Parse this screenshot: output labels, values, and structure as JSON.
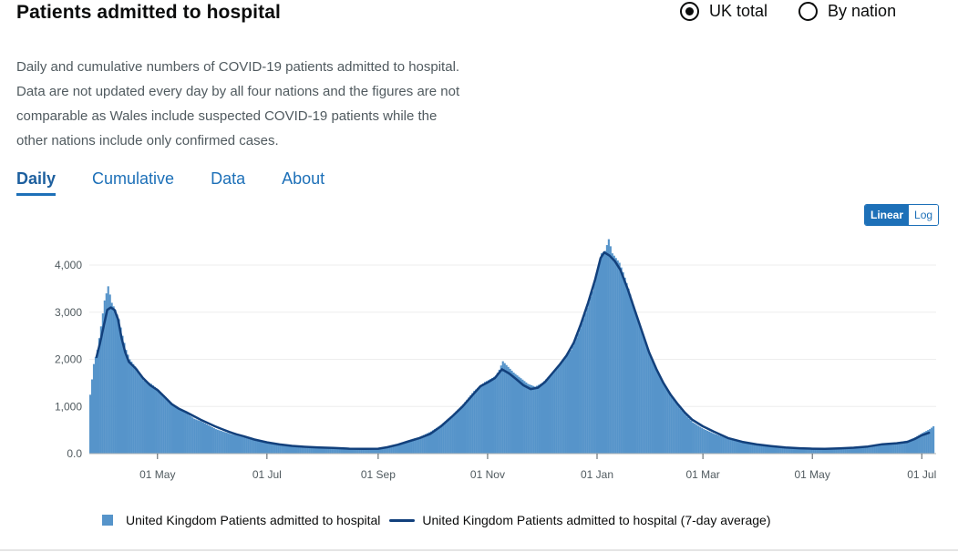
{
  "header": {
    "title": "Patients admitted to hospital"
  },
  "view_options": [
    {
      "label": "UK total",
      "checked": true
    },
    {
      "label": "By nation",
      "checked": false
    }
  ],
  "description": [
    "Daily and cumulative numbers of COVID-19 patients admitted to hospital.",
    "Data are not updated every day by all four nations and the figures are not",
    "comparable as Wales include suspected COVID-19 patients while the",
    "other nations include only confirmed cases."
  ],
  "tabs": [
    {
      "label": "Daily",
      "active": true
    },
    {
      "label": "Cumulative",
      "active": false
    },
    {
      "label": "Data",
      "active": false
    },
    {
      "label": "About",
      "active": false
    }
  ],
  "scale": {
    "linear_label": "Linear",
    "log_label": "Log",
    "active": "Linear"
  },
  "colors": {
    "bars": "#5694ca",
    "line": "#12407c",
    "grid": "#eeeeee",
    "axis_text": "#505a5f"
  },
  "chart_data": {
    "type": "bar",
    "title": "Patients admitted to hospital",
    "xlabel": "",
    "ylabel": "",
    "ylim": [
      0,
      4600
    ],
    "y_ticks": [
      0,
      1000,
      2000,
      3000,
      4000
    ],
    "y_tick_labels": [
      "0.0",
      "1,000",
      "2,000",
      "3,000",
      "4,000"
    ],
    "x_tick_labels": [
      "01 May",
      "01 Jul",
      "01 Sep",
      "01 Nov",
      "01 Jan",
      "01 Mar",
      "01 May",
      "01 Jul"
    ],
    "x_tick_days": [
      38,
      99,
      161,
      222,
      283,
      342,
      403,
      464
    ],
    "day_range": [
      0,
      472
    ],
    "grid": true,
    "legend_position": "bottom",
    "series": [
      {
        "name": "United Kingdom Patients admitted to hospital",
        "kind": "bar",
        "points": [
          [
            0,
            1250
          ],
          [
            2,
            1900
          ],
          [
            4,
            2200
          ],
          [
            6,
            2700
          ],
          [
            8,
            3250
          ],
          [
            10,
            3550
          ],
          [
            12,
            3200
          ],
          [
            14,
            3050
          ],
          [
            16,
            2850
          ],
          [
            18,
            2500
          ],
          [
            20,
            2200
          ],
          [
            22,
            2000
          ],
          [
            24,
            1900
          ],
          [
            26,
            1800
          ],
          [
            28,
            1650
          ],
          [
            30,
            1550
          ],
          [
            34,
            1480
          ],
          [
            38,
            1350
          ],
          [
            42,
            1200
          ],
          [
            46,
            1050
          ],
          [
            50,
            950
          ],
          [
            54,
            850
          ],
          [
            58,
            740
          ],
          [
            62,
            680
          ],
          [
            66,
            600
          ],
          [
            70,
            520
          ],
          [
            74,
            470
          ],
          [
            78,
            420
          ],
          [
            82,
            380
          ],
          [
            86,
            340
          ],
          [
            92,
            290
          ],
          [
            99,
            230
          ],
          [
            106,
            190
          ],
          [
            113,
            160
          ],
          [
            120,
            140
          ],
          [
            128,
            130
          ],
          [
            136,
            120
          ],
          [
            145,
            110
          ],
          [
            153,
            100
          ],
          [
            161,
            110
          ],
          [
            166,
            140
          ],
          [
            172,
            210
          ],
          [
            178,
            290
          ],
          [
            184,
            360
          ],
          [
            190,
            470
          ],
          [
            196,
            620
          ],
          [
            202,
            820
          ],
          [
            208,
            1050
          ],
          [
            214,
            1330
          ],
          [
            220,
            1520
          ],
          [
            222,
            1560
          ],
          [
            226,
            1650
          ],
          [
            228,
            1780
          ],
          [
            230,
            1960
          ],
          [
            232,
            1880
          ],
          [
            236,
            1720
          ],
          [
            240,
            1600
          ],
          [
            244,
            1480
          ],
          [
            248,
            1420
          ],
          [
            252,
            1500
          ],
          [
            256,
            1650
          ],
          [
            260,
            1820
          ],
          [
            264,
            2000
          ],
          [
            268,
            2200
          ],
          [
            272,
            2550
          ],
          [
            276,
            2980
          ],
          [
            280,
            3450
          ],
          [
            283,
            3900
          ],
          [
            285,
            4250
          ],
          [
            287,
            4300
          ],
          [
            289,
            4550
          ],
          [
            291,
            4250
          ],
          [
            293,
            4150
          ],
          [
            295,
            4050
          ],
          [
            297,
            3850
          ],
          [
            300,
            3500
          ],
          [
            304,
            3000
          ],
          [
            308,
            2550
          ],
          [
            312,
            2100
          ],
          [
            316,
            1750
          ],
          [
            320,
            1450
          ],
          [
            324,
            1200
          ],
          [
            328,
            1000
          ],
          [
            332,
            820
          ],
          [
            336,
            660
          ],
          [
            342,
            520
          ],
          [
            348,
            420
          ],
          [
            356,
            310
          ],
          [
            364,
            240
          ],
          [
            372,
            180
          ],
          [
            380,
            150
          ],
          [
            388,
            120
          ],
          [
            396,
            110
          ],
          [
            403,
            100
          ],
          [
            410,
            100
          ],
          [
            418,
            110
          ],
          [
            426,
            130
          ],
          [
            434,
            160
          ],
          [
            442,
            210
          ],
          [
            450,
            240
          ],
          [
            456,
            280
          ],
          [
            460,
            350
          ],
          [
            464,
            440
          ],
          [
            468,
            520
          ],
          [
            470,
            580
          ]
        ]
      },
      {
        "name": "United Kingdom Patients admitted to hospital (7-day average)",
        "kind": "line",
        "points": [
          [
            4,
            2050
          ],
          [
            6,
            2350
          ],
          [
            8,
            2700
          ],
          [
            10,
            3050
          ],
          [
            12,
            3100
          ],
          [
            14,
            3050
          ],
          [
            16,
            2850
          ],
          [
            18,
            2450
          ],
          [
            20,
            2150
          ],
          [
            22,
            1950
          ],
          [
            26,
            1800
          ],
          [
            30,
            1600
          ],
          [
            34,
            1450
          ],
          [
            38,
            1350
          ],
          [
            42,
            1200
          ],
          [
            46,
            1050
          ],
          [
            50,
            950
          ],
          [
            54,
            880
          ],
          [
            58,
            800
          ],
          [
            62,
            720
          ],
          [
            66,
            650
          ],
          [
            70,
            580
          ],
          [
            74,
            520
          ],
          [
            78,
            460
          ],
          [
            82,
            410
          ],
          [
            86,
            370
          ],
          [
            92,
            300
          ],
          [
            99,
            240
          ],
          [
            106,
            195
          ],
          [
            113,
            165
          ],
          [
            120,
            145
          ],
          [
            128,
            130
          ],
          [
            136,
            120
          ],
          [
            145,
            105
          ],
          [
            153,
            100
          ],
          [
            161,
            105
          ],
          [
            166,
            135
          ],
          [
            172,
            190
          ],
          [
            178,
            260
          ],
          [
            184,
            330
          ],
          [
            190,
            420
          ],
          [
            196,
            580
          ],
          [
            202,
            780
          ],
          [
            208,
            1000
          ],
          [
            214,
            1260
          ],
          [
            218,
            1430
          ],
          [
            222,
            1510
          ],
          [
            226,
            1600
          ],
          [
            230,
            1790
          ],
          [
            234,
            1700
          ],
          [
            238,
            1580
          ],
          [
            242,
            1450
          ],
          [
            246,
            1370
          ],
          [
            250,
            1400
          ],
          [
            254,
            1520
          ],
          [
            258,
            1700
          ],
          [
            262,
            1880
          ],
          [
            266,
            2080
          ],
          [
            270,
            2350
          ],
          [
            274,
            2750
          ],
          [
            278,
            3200
          ],
          [
            282,
            3700
          ],
          [
            285,
            4150
          ],
          [
            287,
            4270
          ],
          [
            290,
            4200
          ],
          [
            293,
            4080
          ],
          [
            296,
            3900
          ],
          [
            300,
            3500
          ],
          [
            304,
            3050
          ],
          [
            308,
            2600
          ],
          [
            312,
            2150
          ],
          [
            316,
            1800
          ],
          [
            320,
            1500
          ],
          [
            324,
            1250
          ],
          [
            328,
            1050
          ],
          [
            332,
            870
          ],
          [
            336,
            720
          ],
          [
            342,
            580
          ],
          [
            348,
            470
          ],
          [
            356,
            330
          ],
          [
            364,
            250
          ],
          [
            372,
            195
          ],
          [
            380,
            160
          ],
          [
            388,
            130
          ],
          [
            396,
            115
          ],
          [
            403,
            105
          ],
          [
            410,
            100
          ],
          [
            418,
            110
          ],
          [
            426,
            125
          ],
          [
            434,
            150
          ],
          [
            442,
            200
          ],
          [
            450,
            220
          ],
          [
            456,
            250
          ],
          [
            460,
            310
          ],
          [
            464,
            390
          ],
          [
            468,
            440
          ]
        ]
      }
    ]
  }
}
